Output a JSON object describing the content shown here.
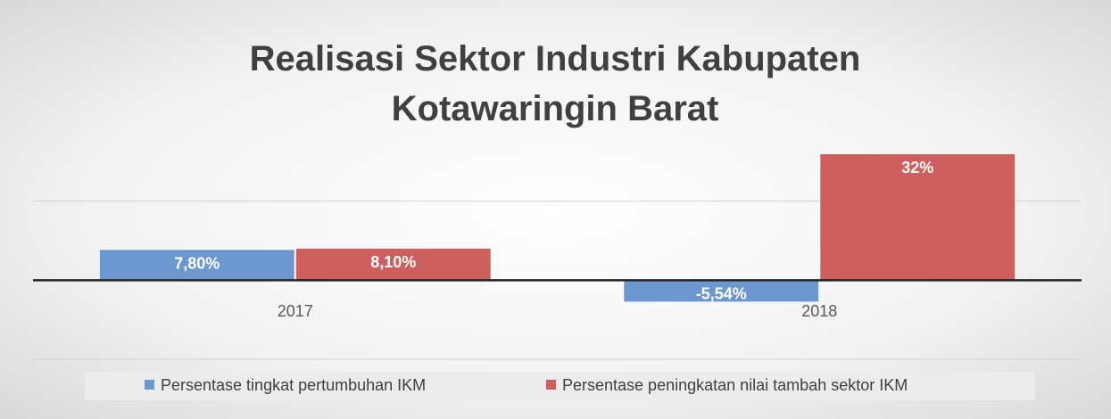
{
  "chart_data": {
    "type": "bar",
    "title": "Realisasi Sektor Industri Kabupaten Kotawaringin Barat",
    "categories": [
      "2017",
      "2018"
    ],
    "series": [
      {
        "name": "Persentase tingkat pertumbuhan IKM",
        "color": "#6d97cf",
        "values": [
          7.8,
          -5.54
        ],
        "value_labels": [
          "7,80%",
          "-5,54%"
        ]
      },
      {
        "name": "Persentase peningkatan nilai tambah sektor IKM",
        "color": "#cd5f5f",
        "values": [
          8.1,
          32
        ],
        "value_labels": [
          "8,10%",
          "32%"
        ]
      }
    ],
    "ylim": [
      -20,
      40
    ],
    "yticks": [
      -20,
      0,
      20,
      40
    ],
    "grid": true,
    "legend": "bottom"
  }
}
